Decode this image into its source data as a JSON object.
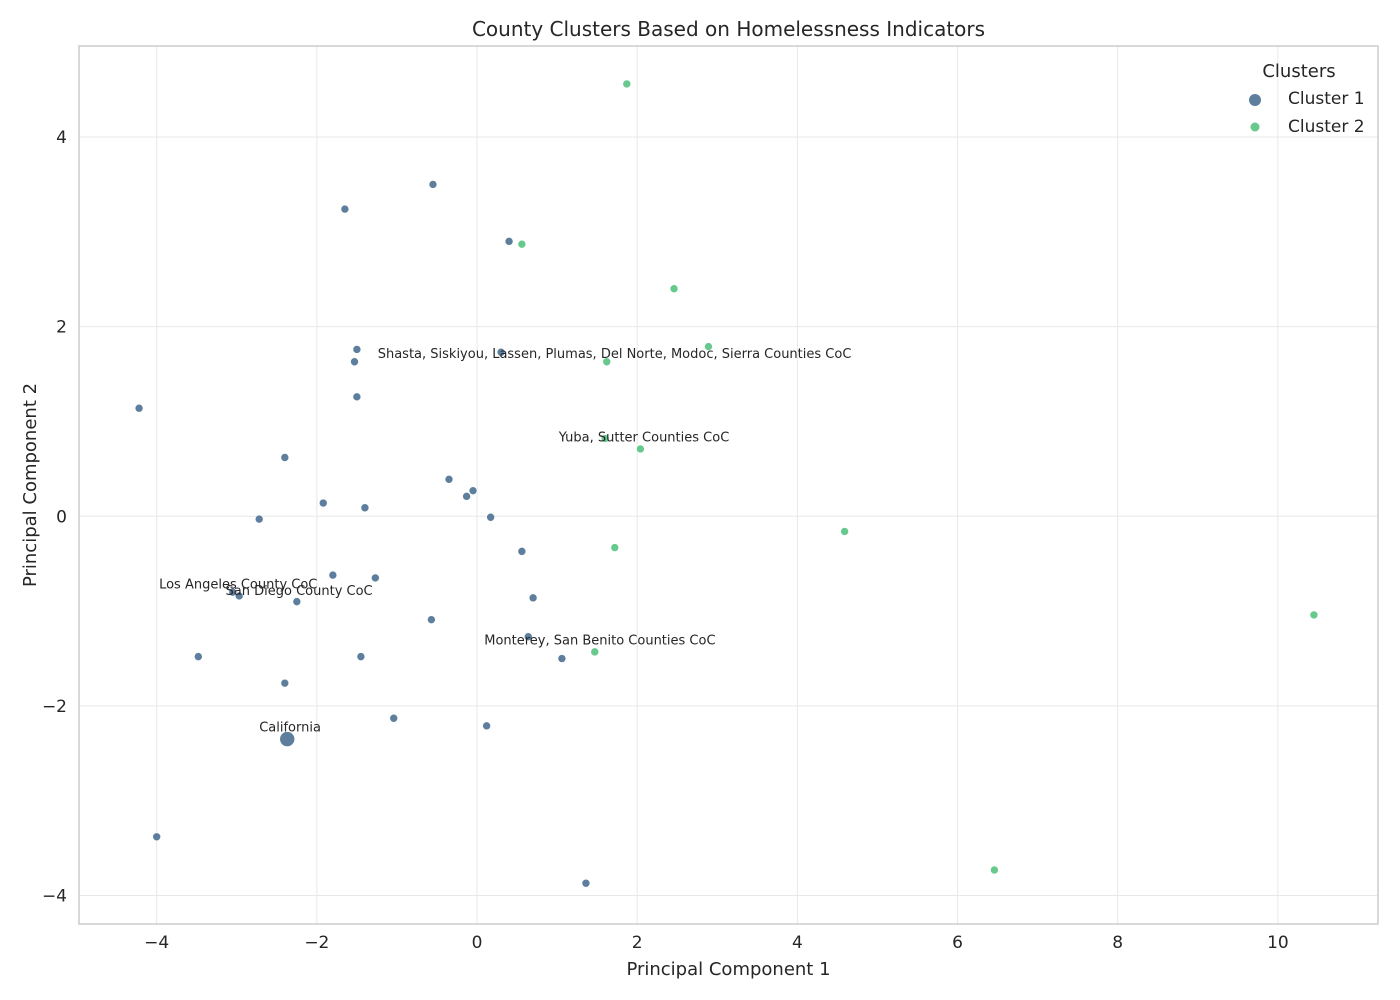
{
  "chart_data": {
    "type": "scatter",
    "title": "County Clusters Based on Homelessness Indicators",
    "xlabel": "Principal Component 1",
    "ylabel": "Principal Component 2",
    "xlim": [
      -4.97,
      11.25
    ],
    "ylim": [
      -4.3,
      4.96
    ],
    "xticks": [
      -4,
      -2,
      0,
      2,
      4,
      6,
      8,
      10
    ],
    "yticks": [
      -4,
      -2,
      0,
      2,
      4
    ],
    "xtick_labels": [
      "−4",
      "−2",
      "0",
      "2",
      "4",
      "6",
      "8",
      "10"
    ],
    "ytick_labels": [
      "−4",
      "−2",
      "0",
      "2",
      "4"
    ],
    "grid": true,
    "legend": {
      "title": "Clusters",
      "position": "top-right"
    },
    "series": [
      {
        "name": "Cluster 1",
        "color": "#41698c",
        "points": [
          {
            "x": -0.55,
            "y": 3.5
          },
          {
            "x": -1.65,
            "y": 3.24
          },
          {
            "x": 0.4,
            "y": 2.9
          },
          {
            "x": -1.5,
            "y": 1.76
          },
          {
            "x": 0.3,
            "y": 1.73
          },
          {
            "x": -1.53,
            "y": 1.63
          },
          {
            "x": -1.5,
            "y": 1.26
          },
          {
            "x": -4.22,
            "y": 1.14
          },
          {
            "x": -2.4,
            "y": 0.62
          },
          {
            "x": -0.35,
            "y": 0.39
          },
          {
            "x": -0.05,
            "y": 0.27
          },
          {
            "x": -0.13,
            "y": 0.21
          },
          {
            "x": -1.92,
            "y": 0.14
          },
          {
            "x": -1.4,
            "y": 0.09
          },
          {
            "x": 0.17,
            "y": -0.01
          },
          {
            "x": -2.72,
            "y": -0.03
          },
          {
            "x": 0.56,
            "y": -0.37
          },
          {
            "x": -1.8,
            "y": -0.62
          },
          {
            "x": -1.27,
            "y": -0.65
          },
          {
            "x": -3.05,
            "y": -0.8
          },
          {
            "x": -2.97,
            "y": -0.84
          },
          {
            "x": 0.7,
            "y": -0.86
          },
          {
            "x": -2.25,
            "y": -0.9
          },
          {
            "x": -0.57,
            "y": -1.09
          },
          {
            "x": 0.64,
            "y": -1.27
          },
          {
            "x": -3.48,
            "y": -1.48
          },
          {
            "x": -1.45,
            "y": -1.48
          },
          {
            "x": 1.06,
            "y": -1.5
          },
          {
            "x": -2.4,
            "y": -1.76
          },
          {
            "x": -1.04,
            "y": -2.13
          },
          {
            "x": 0.12,
            "y": -2.21
          },
          {
            "x": -2.37,
            "y": -2.35,
            "size": "large"
          },
          {
            "x": -4.0,
            "y": -3.38
          },
          {
            "x": 1.36,
            "y": -3.87
          }
        ]
      },
      {
        "name": "Cluster 2",
        "color": "#4cbf79",
        "points": [
          {
            "x": 1.87,
            "y": 4.56
          },
          {
            "x": 0.56,
            "y": 2.87
          },
          {
            "x": 2.46,
            "y": 2.4
          },
          {
            "x": 2.89,
            "y": 1.79
          },
          {
            "x": 1.62,
            "y": 1.63
          },
          {
            "x": 1.6,
            "y": 0.82
          },
          {
            "x": 2.04,
            "y": 0.71
          },
          {
            "x": 4.59,
            "y": -0.16
          },
          {
            "x": 1.72,
            "y": -0.33
          },
          {
            "x": 1.47,
            "y": -1.43
          },
          {
            "x": 6.46,
            "y": -3.73
          },
          {
            "x": 10.45,
            "y": -1.04
          }
        ]
      }
    ],
    "annotations": [
      {
        "text": "Shasta, Siskiyou, Lassen, Plumas, Del Norte, Modoc, Sierra Counties CoC",
        "x": -1.24,
        "y": 1.67
      },
      {
        "text": "Yuba, Sutter Counties CoC",
        "x": 1.02,
        "y": 0.79
      },
      {
        "text": "Los Angeles County CoC",
        "x": -3.97,
        "y": -0.76
      },
      {
        "text": "San Diego County CoC",
        "x": -3.14,
        "y": -0.83
      },
      {
        "text": "Monterey, San Benito Counties CoC",
        "x": 0.09,
        "y": -1.35
      },
      {
        "text": "California",
        "x": -2.72,
        "y": -2.27
      }
    ]
  }
}
